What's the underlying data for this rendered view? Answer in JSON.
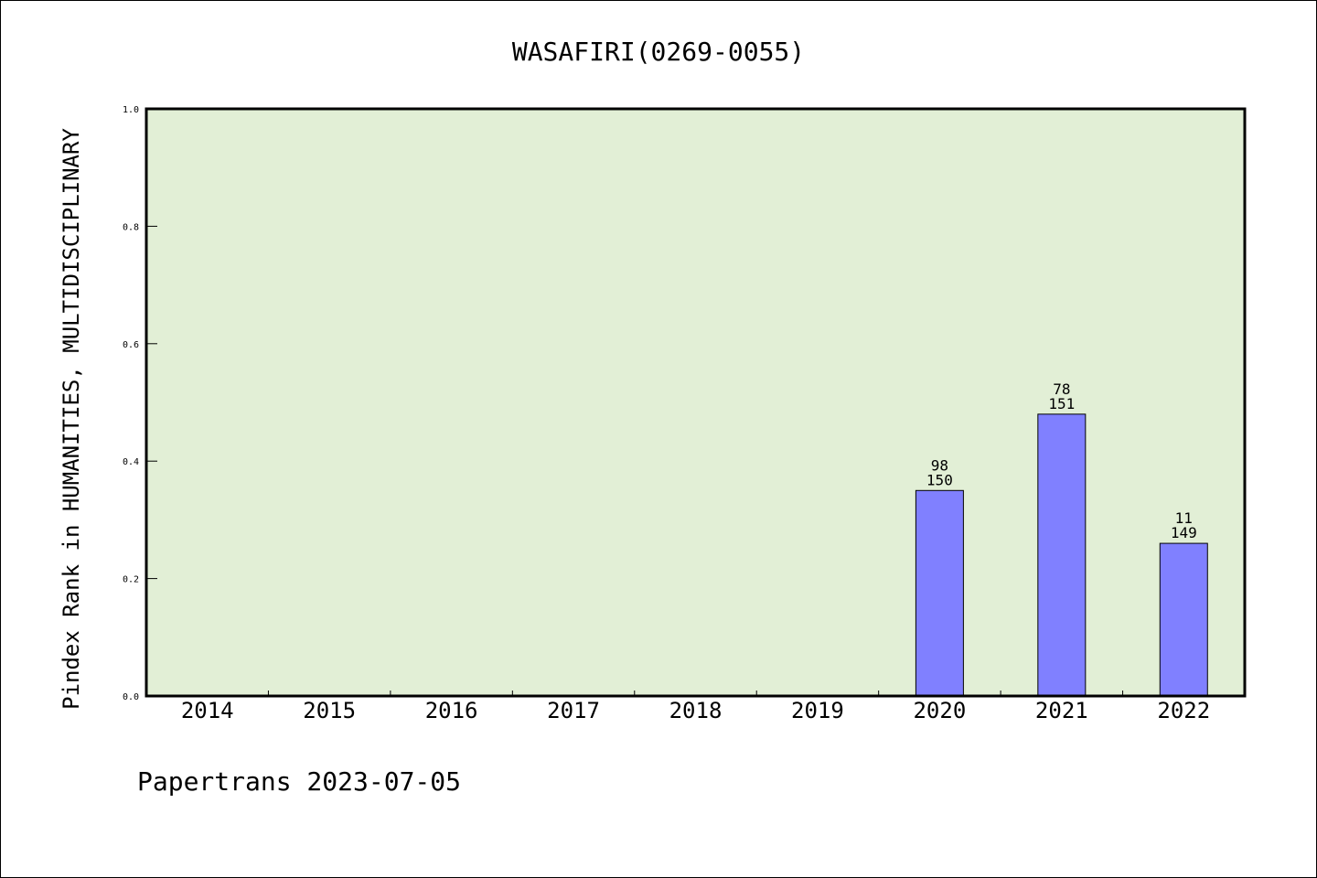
{
  "chart_data": {
    "type": "bar",
    "title": "WASAFIRI(0269-0055)",
    "ylabel": "Pindex Rank in HUMANITIES, MULTIDISCIPLINARY",
    "xlabel": "",
    "ylim": [
      0,
      1
    ],
    "yticks": [
      "0.0",
      "0.2",
      "0.4",
      "0.6",
      "0.8",
      "1.0"
    ],
    "categories": [
      "2014",
      "2015",
      "2016",
      "2017",
      "2018",
      "2019",
      "2020",
      "2021",
      "2022"
    ],
    "values": [
      null,
      null,
      null,
      null,
      null,
      null,
      0.35,
      0.48,
      0.26
    ],
    "labels_top": [
      "",
      "",
      "",
      "",
      "",
      "",
      "98",
      "78",
      "11"
    ],
    "labels_bottom": [
      "",
      "",
      "",
      "",
      "",
      "",
      "150",
      "151",
      "149"
    ],
    "bar_color": "#8080ff",
    "plot_bg": "#e2efd6",
    "grid": false
  },
  "footer": "Papertrans 2023-07-05"
}
